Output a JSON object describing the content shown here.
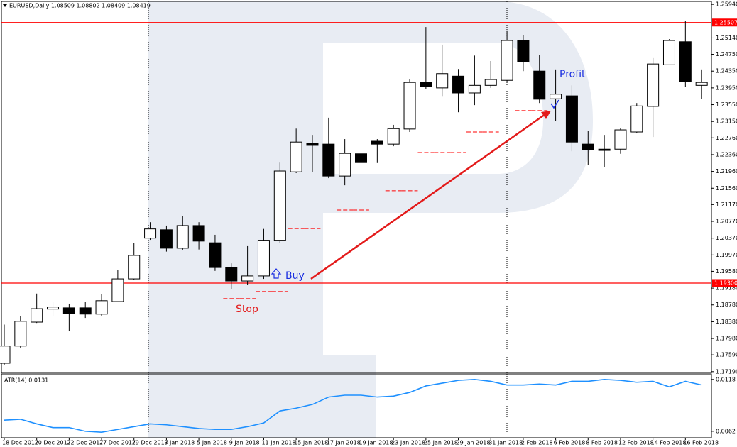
{
  "chart_data": {
    "type": "candlestick",
    "title": "EURUSD,Daily 1.08509 1.08802 1.08409 1.08419",
    "categories": [
      "18 Dec 2017",
      null,
      "20 Dec 2017",
      null,
      "22 Dec 2017",
      null,
      "27 Dec 2017",
      null,
      "29 Dec 2017",
      null,
      "3 Jan 2018",
      null,
      "5 Jan 2018",
      null,
      "9 Jan 2018",
      null,
      "11 Jan 2018",
      null,
      "15 Jan 2018",
      null,
      "17 Jan 2018",
      null,
      "19 Jan 2018",
      null,
      "23 Jan 2018",
      null,
      "25 Jan 2018",
      null,
      "29 Jan 2018",
      null,
      "31 Jan 2018",
      null,
      "2 Feb 2018",
      null,
      "6 Feb 2018",
      null,
      "8 Feb 2018",
      null,
      "12 Feb 2018",
      null,
      "14 Feb 2018",
      null,
      "16 Feb 2018",
      null
    ],
    "open": [
      1.1739,
      1.178,
      1.1837,
      1.1868,
      1.1871,
      1.1871,
      1.1856,
      1.1886,
      1.194,
      1.2037,
      1.2057,
      1.2013,
      1.2067,
      1.2026,
      1.1967,
      1.1935,
      1.1947,
      1.2032,
      1.2195,
      1.2263,
      1.2261,
      1.2185,
      1.2238,
      1.2268,
      1.2261,
      1.2297,
      1.2408,
      1.2395,
      1.2423,
      1.2383,
      1.2401,
      1.2413,
      1.2508,
      1.2435,
      1.2369,
      1.2376,
      1.2261,
      1.2249,
      1.2249,
      1.229,
      1.2351,
      1.245,
      1.2505,
      1.2401
    ],
    "high": [
      1.1831,
      1.1852,
      1.1905,
      1.1886,
      1.1881,
      1.1885,
      1.1903,
      1.1962,
      1.2025,
      1.2075,
      1.2067,
      1.2089,
      1.2075,
      1.2045,
      1.1977,
      1.2018,
      1.2059,
      1.2217,
      1.2298,
      1.2283,
      1.2324,
      1.2273,
      1.2295,
      1.2273,
      1.2307,
      1.2415,
      1.254,
      1.2498,
      1.244,
      1.2472,
      1.2459,
      1.2532,
      1.252,
      1.2474,
      1.2439,
      1.2401,
      1.2293,
      1.2283,
      1.23,
      1.2359,
      1.2466,
      1.2511,
      1.2555,
      1.2439
    ],
    "low": [
      1.1734,
      1.1776,
      1.1835,
      1.1852,
      1.1815,
      1.1847,
      1.1852,
      1.1885,
      1.1937,
      1.2033,
      1.2005,
      1.2008,
      1.201,
      1.1959,
      1.1915,
      1.1925,
      1.194,
      1.2026,
      1.2192,
      1.2195,
      1.218,
      1.2163,
      1.2216,
      1.2216,
      1.2256,
      1.229,
      1.2393,
      1.2374,
      1.2337,
      1.2354,
      1.2395,
      1.2408,
      1.2435,
      1.2359,
      1.2317,
      1.2244,
      1.2211,
      1.2206,
      1.2238,
      1.2288,
      1.2278,
      1.2449,
      1.2398,
      1.2368
    ],
    "close": [
      1.178,
      1.1839,
      1.1869,
      1.1873,
      1.1858,
      1.1856,
      1.1888,
      1.194,
      1.1996,
      1.2059,
      1.2013,
      1.2067,
      1.203,
      1.1967,
      1.1935,
      1.1947,
      1.2032,
      1.2197,
      1.2266,
      1.2258,
      1.2185,
      1.2239,
      1.2217,
      1.2261,
      1.2298,
      1.2408,
      1.2398,
      1.2429,
      1.2383,
      1.2401,
      1.2415,
      1.2508,
      1.2457,
      1.2368,
      1.238,
      1.2266,
      1.2248,
      1.2246,
      1.2295,
      1.2352,
      1.2452,
      1.2508,
      1.241,
      1.2408
    ],
    "up_color": "#ffffff",
    "down_color": "#000000",
    "ylim": [
      1.1717,
      1.2601
    ],
    "yticks": [
      {
        "value": 1.2594,
        "label": "1.25940"
      },
      {
        "value": 1.2514,
        "label": "1.25140"
      },
      {
        "value": 1.2475,
        "label": "1.24750"
      },
      {
        "value": 1.2435,
        "label": "1.24350"
      },
      {
        "value": 1.2395,
        "label": "1.23950"
      },
      {
        "value": 1.2355,
        "label": "1.23550"
      },
      {
        "value": 1.2315,
        "label": "1.23150"
      },
      {
        "value": 1.2276,
        "label": "1.22760"
      },
      {
        "value": 1.2236,
        "label": "1.22360"
      },
      {
        "value": 1.2196,
        "label": "1.21960"
      },
      {
        "value": 1.2156,
        "label": "1.21560"
      },
      {
        "value": 1.2117,
        "label": "1.21170"
      },
      {
        "value": 1.2077,
        "label": "1.20770"
      },
      {
        "value": 1.2037,
        "label": "1.20370"
      },
      {
        "value": 1.1997,
        "label": "1.19970"
      },
      {
        "value": 1.1958,
        "label": "1.19580"
      },
      {
        "value": 1.1918,
        "label": "1.19180"
      },
      {
        "value": 1.1878,
        "label": "1.18780"
      },
      {
        "value": 1.1838,
        "label": "1.18380"
      },
      {
        "value": 1.1798,
        "label": "1.17980"
      },
      {
        "value": 1.1759,
        "label": "1.17590"
      },
      {
        "value": 1.1719,
        "label": "1.17190"
      }
    ],
    "hlines": [
      {
        "value": 1.25507,
        "label": "1.25507",
        "color": "#ff0000"
      },
      {
        "value": 1.193,
        "label": "1.19300",
        "color": "#ff0000"
      }
    ],
    "trailing_stop": [
      null,
      null,
      null,
      null,
      null,
      null,
      null,
      null,
      null,
      null,
      null,
      null,
      null,
      null,
      1.1893,
      1.1893,
      1.191,
      1.191,
      1.206,
      1.206,
      null,
      1.2104,
      1.2104,
      null,
      1.215,
      1.215,
      1.2241,
      1.2241,
      1.2241,
      1.229,
      1.229,
      null,
      1.2341,
      1.2341,
      null,
      null,
      null,
      null,
      null,
      null,
      null,
      null,
      null,
      null
    ],
    "trailing_stop_color": "#ff0000",
    "annotations": {
      "buy": "Buy",
      "stop": "Stop",
      "profit": "Profit"
    },
    "indicator": {
      "type": "line",
      "title": "ATR(14) 0.0131",
      "color": "#1e90ff",
      "values": [
        0.0074,
        0.0075,
        0.007,
        0.0066,
        0.0066,
        0.0062,
        0.0061,
        0.0064,
        0.0067,
        0.007,
        0.0069,
        0.0067,
        0.0065,
        0.0064,
        0.0064,
        0.0067,
        0.0071,
        0.0084,
        0.0087,
        0.0091,
        0.0099,
        0.0101,
        0.0101,
        0.0099,
        0.01,
        0.0104,
        0.0111,
        0.0114,
        0.0117,
        0.0118,
        0.0116,
        0.0112,
        0.0112,
        0.0113,
        0.0112,
        0.0116,
        0.0116,
        0.0118,
        0.0117,
        0.0115,
        0.0116,
        0.011,
        0.0116,
        0.0112
      ],
      "ylim": [
        0.0055,
        0.0124
      ],
      "yticks": [
        0.0118,
        0.0062
      ]
    }
  }
}
